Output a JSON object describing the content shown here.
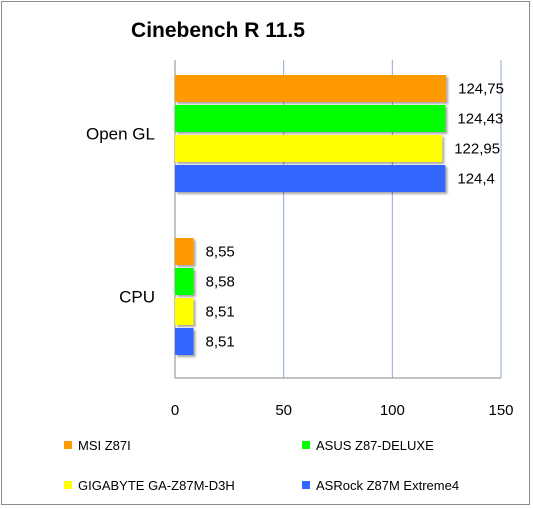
{
  "chart_data": {
    "type": "bar",
    "orientation": "horizontal",
    "title": "Cinebench R 11.5",
    "categories": [
      "Open GL",
      "CPU"
    ],
    "series": [
      {
        "name": "MSI Z87I",
        "color": "#FF9900",
        "values": [
          124.75,
          8.55
        ],
        "labels": [
          "124,75",
          "8,55"
        ]
      },
      {
        "name": "ASUS Z87-DELUXE",
        "color": "#00FF00",
        "values": [
          124.43,
          8.58
        ],
        "labels": [
          "124,43",
          "8,58"
        ]
      },
      {
        "name": "GIGABYTE GA-Z87M-D3H",
        "color": "#FFFF00",
        "values": [
          122.95,
          8.51
        ],
        "labels": [
          "122,95",
          "8,51"
        ]
      },
      {
        "name": "ASRock Z87M Extreme4",
        "color": "#3366FF",
        "values": [
          124.4,
          8.51
        ],
        "labels": [
          "124,4",
          "8,51"
        ]
      }
    ],
    "xlim": [
      0,
      150
    ],
    "xticks": [
      "0",
      "50",
      "100",
      "150"
    ],
    "grid": true,
    "legend_position": "bottom"
  }
}
